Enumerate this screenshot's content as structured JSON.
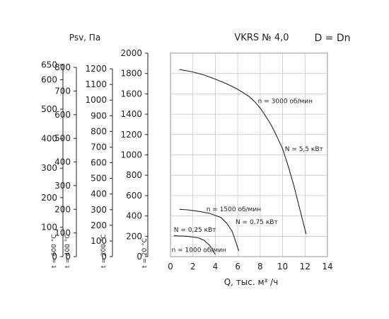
{
  "chart_data": {
    "type": "line",
    "title": "VKRS № 4,0",
    "subtitle": "D = Dn",
    "xlabel": "Q, тыс. м³ /ч",
    "ylabel": "Psv, Па",
    "xlim": [
      0,
      14
    ],
    "ylim": [
      0,
      2000
    ],
    "x_ticks": [
      0,
      2,
      4,
      6,
      8,
      10,
      12,
      14
    ],
    "y_ticks": [
      0,
      200,
      400,
      600,
      800,
      1000,
      1200,
      1400,
      1600,
      1800,
      2000
    ],
    "grid": true,
    "temperature_axes": [
      {
        "label": "t = 20 °C",
        "ticks": [
          0,
          200,
          400,
          600,
          800,
          1000,
          1200,
          1400,
          1600,
          1800,
          2000
        ]
      },
      {
        "label": "t = 200 °C",
        "ticks": [
          0,
          100,
          200,
          300,
          400,
          500,
          600,
          700,
          800,
          900,
          1000,
          1100,
          1200
        ]
      },
      {
        "label": "t = 400 °C",
        "ticks": [
          0,
          100,
          200,
          300,
          400,
          500,
          600,
          700,
          800
        ]
      },
      {
        "label": "t = 600 °C",
        "ticks": [
          0,
          100,
          200,
          300,
          400,
          500,
          600,
          650
        ]
      }
    ],
    "series": [
      {
        "name": "n = 3000 об/мин",
        "x": [
          0.8,
          2.0,
          3.0,
          4.0,
          5.0,
          6.0,
          7.0,
          7.5,
          8.0,
          8.5,
          9.0,
          9.5,
          10.0,
          10.5,
          11.0,
          11.5,
          12.1
        ],
        "y": [
          1840,
          1815,
          1785,
          1745,
          1700,
          1645,
          1575,
          1525,
          1460,
          1380,
          1290,
          1180,
          1060,
          890,
          700,
          480,
          220
        ]
      },
      {
        "name": "n = 1500 об/мин",
        "x": [
          0.8,
          1.5,
          2.5,
          3.5,
          4.5,
          5.0,
          5.5,
          6.1
        ],
        "y": [
          465,
          460,
          445,
          425,
          385,
          330,
          250,
          55
        ]
      },
      {
        "name": "n = 1000 об/мин",
        "x": [
          0.3,
          1.5,
          2.5,
          3.0,
          3.5,
          4.0
        ],
        "y": [
          205,
          200,
          185,
          160,
          110,
          20
        ]
      }
    ],
    "annotations": [
      {
        "text": "n = 3000 об/мин",
        "x": 7.8,
        "y": 1510
      },
      {
        "text": "N = 5,5 кВт",
        "x": 10.2,
        "y": 1040
      },
      {
        "text": "n = 1500 об/мин",
        "x": 3.2,
        "y": 445
      },
      {
        "text": "N = 0,75 кВт",
        "x": 5.8,
        "y": 320
      },
      {
        "text": "N = 0,25 кВт",
        "x": 0.3,
        "y": 245
      },
      {
        "text": "n = 1000 об/мин",
        "x": 0.1,
        "y": 45
      }
    ]
  }
}
